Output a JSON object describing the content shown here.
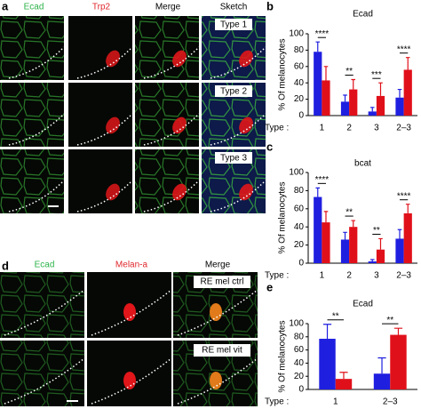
{
  "panels": {
    "a": {
      "letter": "a",
      "columns": [
        "Ecad",
        "Trp2",
        "Merge",
        "Sketch"
      ],
      "types": [
        "Type 1",
        "Type 2",
        "Type 3"
      ]
    },
    "d": {
      "letter": "d",
      "columns": [
        "Ecad",
        "Melan-a",
        "Merge"
      ],
      "conditions": [
        "RE mel ctrl",
        "RE mel vit"
      ]
    }
  },
  "chart_data": [
    {
      "type": "bar",
      "letter": "b",
      "title": "Ecad",
      "ylabel": "% Of melanocytes",
      "xlabel": "Type :",
      "categories": [
        "1",
        "2",
        "3",
        "2–3"
      ],
      "series": [
        {
          "color": "#1f1fe0",
          "values": [
            78,
            17,
            5,
            22
          ],
          "errors": [
            12,
            8,
            5,
            10
          ]
        },
        {
          "color": "#e0101a",
          "values": [
            43,
            32,
            24,
            56
          ],
          "errors": [
            17,
            12,
            16,
            15
          ]
        }
      ],
      "significance": [
        "****",
        "**",
        "***",
        "****"
      ],
      "ylim": [
        0,
        100
      ],
      "yticks": [
        0,
        20,
        40,
        60,
        80,
        100
      ]
    },
    {
      "type": "bar",
      "letter": "c",
      "title": "bcat",
      "ylabel": "% Of melanocytes",
      "xlabel": "Type :",
      "categories": [
        "1",
        "2",
        "3",
        "2–3"
      ],
      "series": [
        {
          "color": "#1f1fe0",
          "values": [
            73,
            26,
            2,
            27
          ],
          "errors": [
            10,
            8,
            2,
            10
          ]
        },
        {
          "color": "#e0101a",
          "values": [
            45,
            40,
            15,
            55
          ],
          "errors": [
            12,
            7,
            12,
            10
          ]
        }
      ],
      "significance": [
        "****",
        "**",
        "**",
        "****"
      ],
      "ylim": [
        0,
        100
      ],
      "yticks": [
        0,
        20,
        40,
        60,
        80,
        100
      ]
    },
    {
      "type": "bar",
      "letter": "e",
      "title": "Ecad",
      "ylabel": "% Of melanocytes",
      "xlabel": "Type :",
      "categories": [
        "1",
        "2–3"
      ],
      "series": [
        {
          "color": "#1f1fe0",
          "values": [
            77,
            24
          ],
          "errors": [
            22,
            24
          ]
        },
        {
          "color": "#e0101a",
          "values": [
            16,
            83
          ],
          "errors": [
            10,
            10
          ]
        }
      ],
      "significance": [
        "**",
        "**"
      ],
      "ylim": [
        0,
        100
      ],
      "yticks": [
        0,
        20,
        40,
        60,
        80,
        100
      ]
    }
  ]
}
